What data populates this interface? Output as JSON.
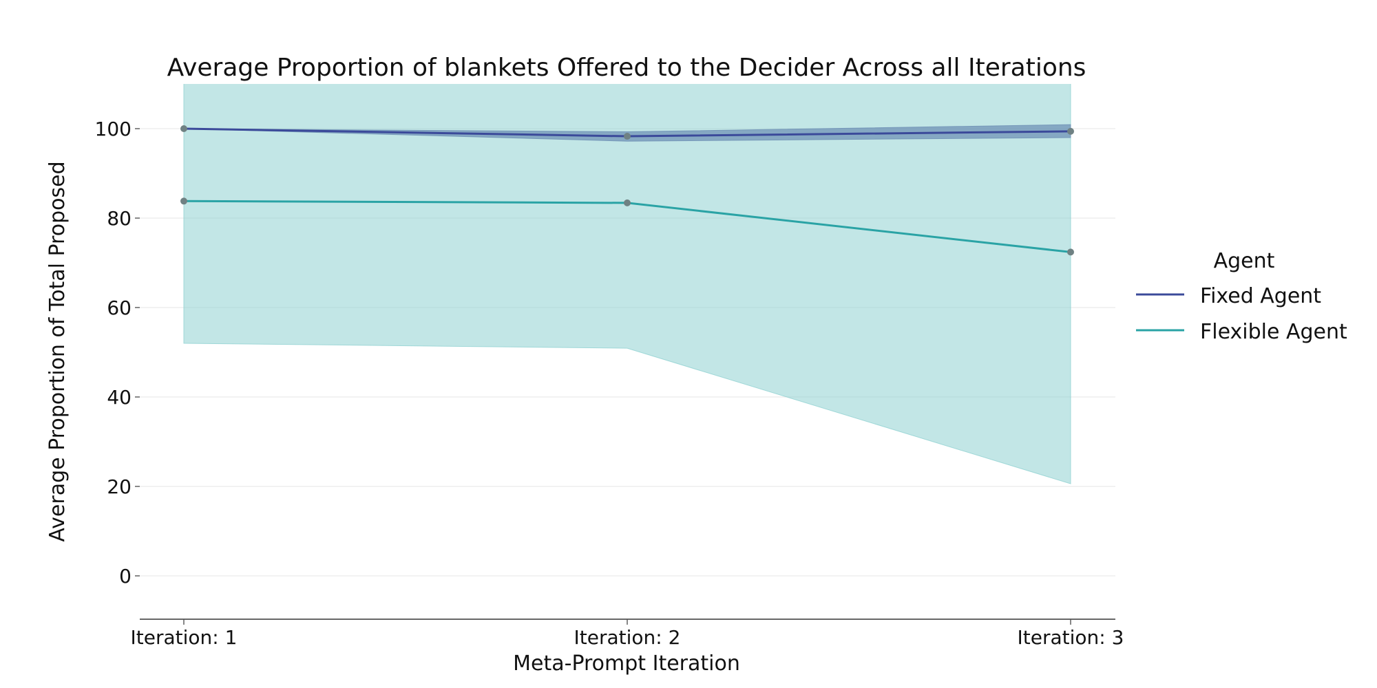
{
  "chart_data": {
    "type": "line",
    "title": "Average Proportion of blankets Offered to the Decider Across all Iterations",
    "xlabel": "Meta-Prompt Iteration",
    "ylabel": "Average Proportion of Total Proposed",
    "categories": [
      "Iteration: 1",
      "Iteration: 2",
      "Iteration: 3"
    ],
    "ylim": [
      -10,
      110
    ],
    "yticks": [
      0,
      20,
      40,
      60,
      80,
      100
    ],
    "grid": "horizontal",
    "legend": {
      "title": "Agent",
      "placement": "right"
    },
    "series": [
      {
        "name": "Fixed Agent",
        "color": "#3b4a9a",
        "band_color": "#6b8db3",
        "values": [
          100,
          98.3,
          99.4
        ],
        "band_lower": [
          100,
          97.2,
          98.0
        ],
        "band_upper": [
          100,
          99.3,
          100.9
        ]
      },
      {
        "name": "Flexible Agent",
        "color": "#2aa3a5",
        "band_color": "#8fd1d1",
        "values": [
          83.8,
          83.4,
          72.4
        ],
        "band_lower": [
          52.0,
          50.9,
          20.6
        ],
        "band_upper": [
          116,
          116,
          124
        ]
      }
    ],
    "marker_color": "#6f8183"
  }
}
